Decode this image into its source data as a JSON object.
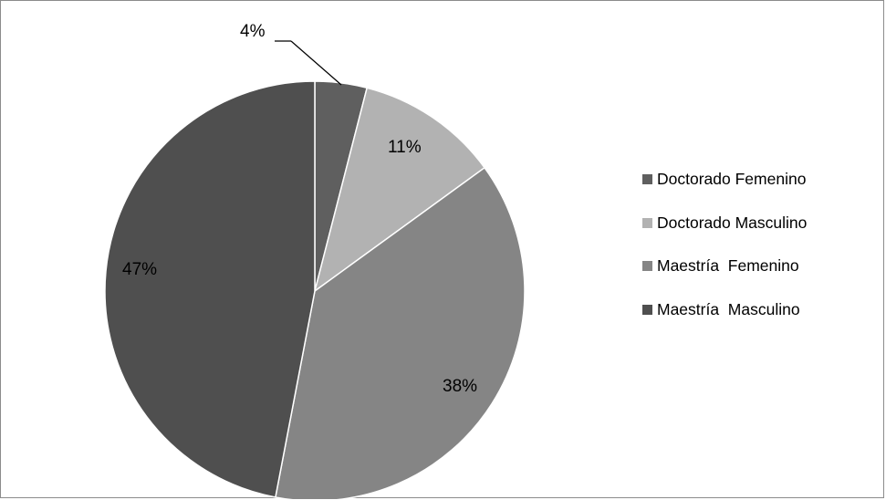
{
  "chart_data": {
    "type": "pie",
    "title": "",
    "categories": [
      "Doctorado Femenino",
      "Doctorado Masculino",
      "Maestría  Femenino",
      "Maestría  Masculino"
    ],
    "values": [
      4,
      11,
      38,
      47
    ],
    "data_labels": [
      "4%",
      "11%",
      "38%",
      "47%"
    ],
    "colors": [
      "#5f5f5f",
      "#b2b2b2",
      "#858585",
      "#4f4f4f"
    ],
    "start_angle": "12 o'clock",
    "direction": "clockwise",
    "legend_position": "right"
  }
}
